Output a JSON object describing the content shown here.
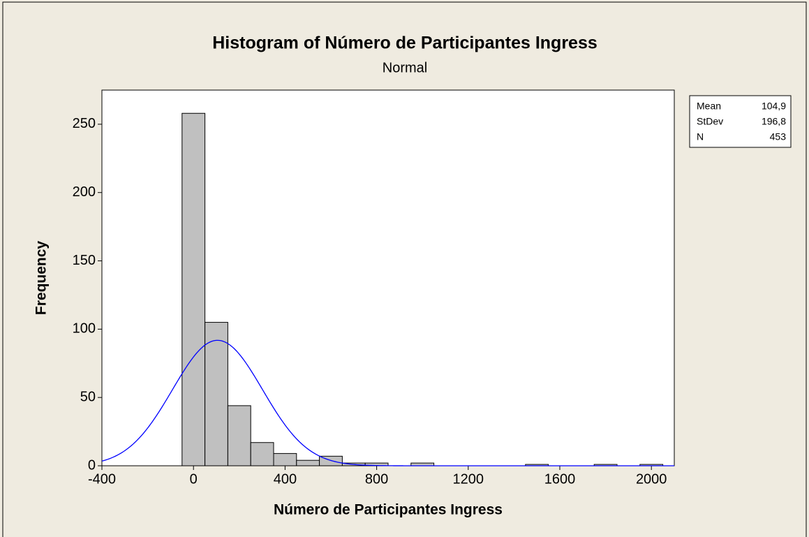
{
  "chart_data": {
    "type": "histogram",
    "title": "Histogram of Número de Participantes Ingress",
    "subtitle": "Normal",
    "xlabel": "Número de Participantes Ingress",
    "ylabel": "Frequency",
    "bins": [
      -50,
      50,
      150,
      250,
      350,
      450,
      550,
      650,
      750,
      850,
      950,
      1050,
      1150,
      1250,
      1350,
      1450,
      1550,
      1650,
      1750,
      1850,
      1950,
      2050
    ],
    "values": [
      258,
      105,
      44,
      17,
      9,
      4,
      7,
      2,
      2,
      0,
      2,
      0,
      0,
      0,
      0,
      1,
      0,
      0,
      1,
      0,
      1
    ],
    "color": "#c0c0c0",
    "curve_color": "#0000ff",
    "xlim": [
      -400,
      2100
    ],
    "ylim": [
      0,
      275
    ],
    "xticks": [
      -400,
      0,
      400,
      800,
      1200,
      1600,
      2000
    ],
    "yticks": [
      0,
      50,
      100,
      150,
      200,
      250
    ],
    "stats": [
      {
        "name": "Mean",
        "value": 104.9,
        "label": "104,9"
      },
      {
        "name": "StDev",
        "value": 196.8,
        "label": "196,8"
      },
      {
        "name": "N",
        "value": 453
      }
    ]
  }
}
